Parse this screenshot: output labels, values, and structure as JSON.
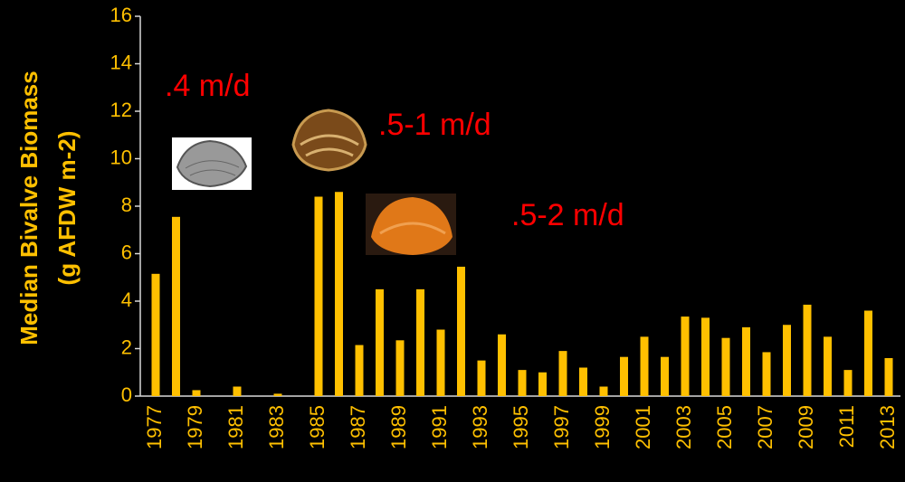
{
  "chart_data": {
    "type": "bar",
    "y_label": [
      "Median Bivalve Biomass",
      "(g AFDW m-2)"
    ],
    "categories": [
      "1977",
      null,
      "1979",
      null,
      "1981",
      null,
      "1983",
      null,
      "1985",
      null,
      "1987",
      null,
      "1989",
      null,
      "1991",
      null,
      "1993",
      null,
      "1995",
      null,
      "1997",
      null,
      "1999",
      null,
      "2001",
      null,
      "2003",
      null,
      "2005",
      null,
      "2007",
      null,
      "2009",
      null,
      "2011",
      null,
      "2013"
    ],
    "values": [
      5.15,
      7.55,
      0.25,
      0,
      0.4,
      0,
      0.1,
      0,
      8.4,
      8.6,
      2.15,
      4.5,
      2.35,
      4.5,
      2.8,
      5.45,
      1.5,
      2.6,
      1.1,
      1.0,
      1.9,
      1.2,
      0.4,
      1.65,
      2.5,
      1.65,
      3.35,
      3.3,
      2.45,
      2.9,
      1.85,
      3.0,
      3.85,
      2.5,
      1.1,
      3.6,
      1.6
    ],
    "color": "#ffc000",
    "ylim": [
      0,
      16
    ],
    "yticks": [
      0,
      2,
      4,
      6,
      8,
      10,
      12,
      14,
      16
    ],
    "annotations": [
      ".4 m/d",
      ".5-1 m/d",
      ".5-2 m/d"
    ]
  }
}
